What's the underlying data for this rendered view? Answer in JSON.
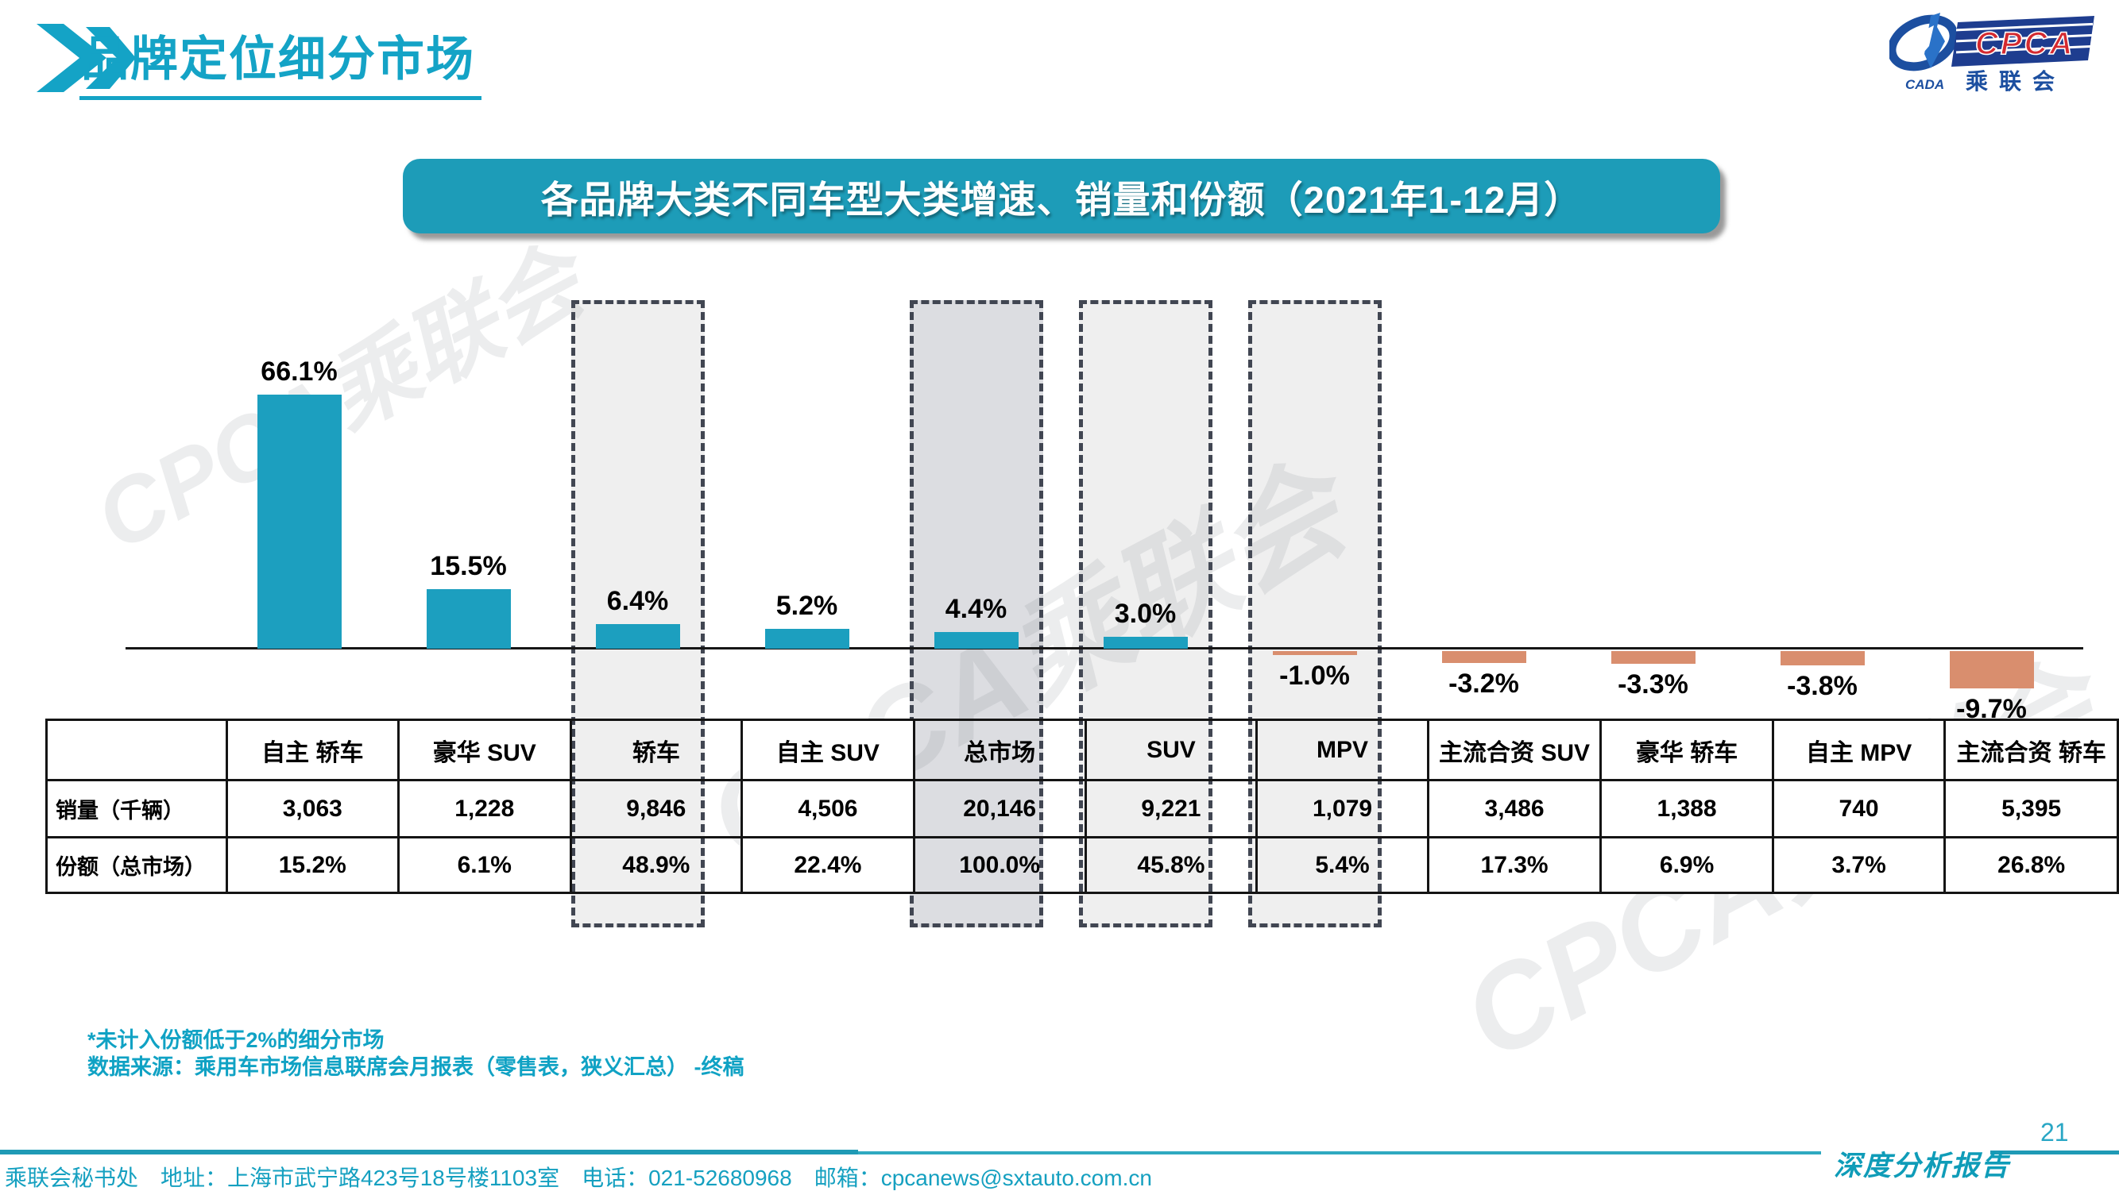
{
  "page": {
    "title": "品牌定位细分市场",
    "page_number": "21",
    "report_label": "深度分析报告",
    "footer": "乘联会秘书处　地址：上海市武宁路423号18号楼1103室　电话：021-52680968　邮箱：cpcanews@sxtauto.com.cn",
    "accent_color": "#14A3C6"
  },
  "logo": {
    "cpca": "CPCA",
    "cada": "CADA",
    "cn_name": "乘联会"
  },
  "banner": {
    "title": "各品牌大类不同车型大类增速、销量和份额（2021年1-12月）",
    "bg_color": "#1D9CB8"
  },
  "watermark": {
    "text": "CPCA乘联会"
  },
  "notes": [
    "*未计入份额低于2%的细分市场",
    "数据来源：乘用车市场信息联席会月报表（零售表，狭义汇总） -终稿"
  ],
  "chart_data": {
    "type": "bar",
    "title": "各品牌大类不同车型大类增速、销量和份额（2021年1-12月）",
    "categories": [
      "自主 轿车",
      "豪华 SUV",
      "轿车",
      "自主 SUV",
      "总市场",
      "SUV",
      "MPV",
      "主流合资 SUV",
      "豪华 轿车",
      "自主 MPV",
      "主流合资 轿车"
    ],
    "series": [
      {
        "name": "增速",
        "unit": "%",
        "values": [
          66.1,
          15.5,
          6.4,
          5.2,
          4.4,
          3.0,
          -1.0,
          -3.2,
          -3.3,
          -3.8,
          -9.7
        ]
      },
      {
        "name": "销量（千辆）",
        "values": [
          3063,
          1228,
          9846,
          4506,
          20146,
          9221,
          1079,
          3486,
          1388,
          740,
          5395
        ]
      },
      {
        "name": "份额（总市场）",
        "unit": "%",
        "values": [
          15.2,
          6.1,
          48.9,
          22.4,
          100.0,
          45.8,
          5.4,
          17.3,
          6.9,
          3.7,
          26.8
        ]
      }
    ],
    "growth_labels": [
      "66.1%",
      "15.5%",
      "6.4%",
      "5.2%",
      "4.4%",
      "3.0%",
      "-1.0%",
      "-3.2%",
      "-3.3%",
      "-3.8%",
      "-9.7%"
    ],
    "bar_colors": {
      "positive": "#1C9FBF",
      "negative": "#D98E6E"
    },
    "highlight": {
      "categories": [
        "轿车",
        "总市场",
        "SUV",
        "MPV"
      ],
      "fills": {
        "轿车": "#EFEFEF",
        "总市场": "#DCDDE1",
        "SUV": "#EFEFEF",
        "MPV": "#EFEFEF"
      },
      "border_color": "#414652"
    },
    "ylim": [
      -12,
      70
    ],
    "grid": false,
    "legend": "none"
  },
  "table": {
    "row_headers": [
      "销量（千辆）",
      "份额（总市场）"
    ],
    "columns": [
      "自主 轿车",
      "豪华 SUV",
      "轿车",
      "自主 SUV",
      "总市场",
      "SUV",
      "MPV",
      "主流合资 SUV",
      "豪华 轿车",
      "自主 MPV",
      "主流合资 轿车"
    ],
    "sales": [
      "3,063",
      "1,228",
      "9,846",
      "4,506",
      "20,146",
      "9,221",
      "1,079",
      "3,486",
      "1,388",
      "740",
      "5,395"
    ],
    "share": [
      "15.2%",
      "6.1%",
      "48.9%",
      "22.4%",
      "100.0%",
      "45.8%",
      "5.4%",
      "17.3%",
      "6.9%",
      "3.7%",
      "26.8%"
    ]
  }
}
